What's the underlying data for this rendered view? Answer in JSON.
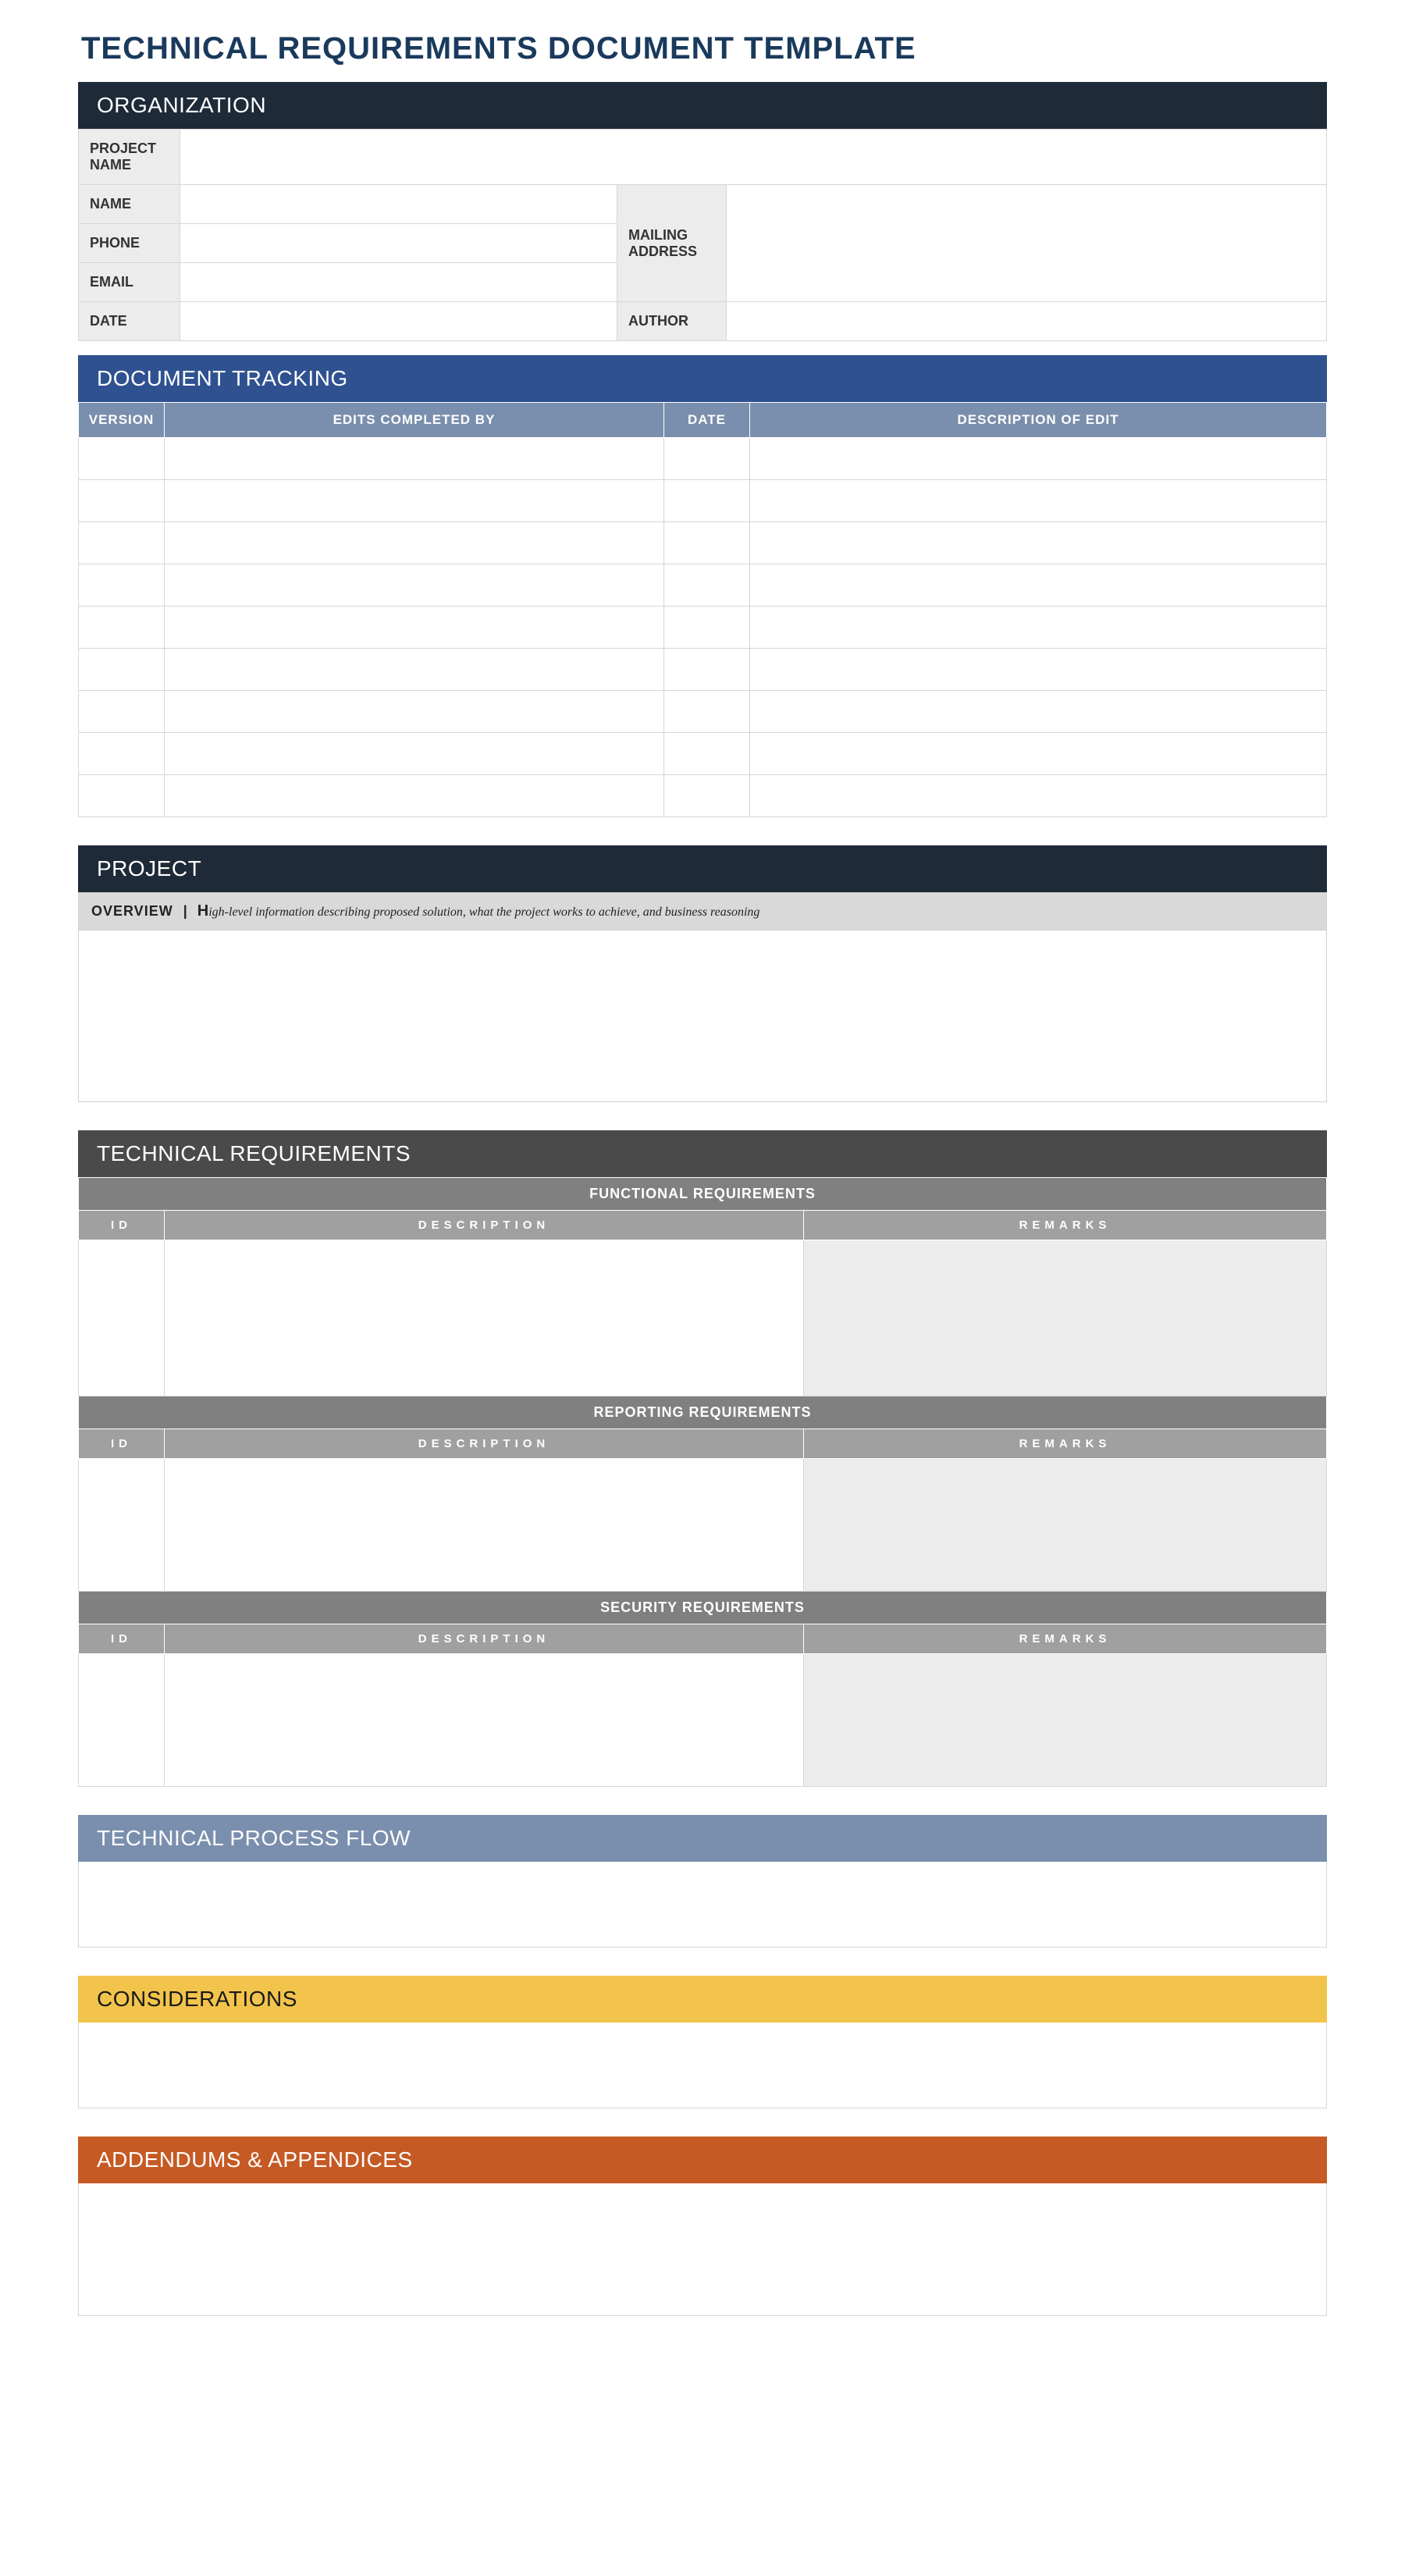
{
  "title": "TECHNICAL REQUIREMENTS DOCUMENT TEMPLATE",
  "colors": {
    "title_text": "#1a3a5c",
    "org_bar": "#1f2a38",
    "track_bar": "#2f5190",
    "track_header": "#7a8fad",
    "proj_bar": "#1f2a38",
    "tech_bar": "#4a4a4a",
    "req_group": "#808080",
    "req_header": "#a0a0a0",
    "flow_bar": "#7a8fad",
    "consid_bar": "#f2c44b",
    "addend_bar": "#c55a24",
    "label_bg": "#ececec",
    "border": "#d6d6d6",
    "overview_bg": "#d9d9d9",
    "remarks_bg": "#ececec"
  },
  "organization": {
    "bar_label": "ORGANIZATION",
    "labels": {
      "project_name": "PROJECT NAME",
      "name": "NAME",
      "phone": "PHONE",
      "email": "EMAIL",
      "date": "DATE",
      "mailing_address": "MAILING ADDRESS",
      "author": "AUTHOR"
    },
    "values": {
      "project_name": "",
      "name": "",
      "phone": "",
      "email": "",
      "date": "",
      "mailing_address": "",
      "author": ""
    }
  },
  "tracking": {
    "bar_label": "DOCUMENT TRACKING",
    "columns": {
      "version": "VERSION",
      "edits_by": "EDITS COMPLETED BY",
      "date": "DATE",
      "descr": "DESCRIPTION OF EDIT"
    },
    "row_count": 9,
    "column_widths": {
      "version": 110,
      "edits_by": 640,
      "date": 110
    }
  },
  "project": {
    "bar_label": "PROJECT",
    "overview_lead": "OVERVIEW",
    "overview_sep": "|",
    "overview_bigletter": "H",
    "overview_desc": "igh-level information describing proposed solution, what the project works to achieve, and business reasoning",
    "overview_body": ""
  },
  "technical": {
    "bar_label": "TECHNICAL REQUIREMENTS",
    "columns": {
      "id": "ID",
      "desc": "DESCRIPTION",
      "remarks": "REMARKS"
    },
    "groups": [
      {
        "title": "FUNCTIONAL REQUIREMENTS",
        "body_height": 200
      },
      {
        "title": "REPORTING REQUIREMENTS",
        "body_height": 170
      },
      {
        "title": "SECURITY REQUIREMENTS",
        "body_height": 170
      }
    ],
    "column_widths": {
      "id": 110,
      "remarks": 670
    }
  },
  "flow": {
    "bar_label": "TECHNICAL PROCESS FLOW",
    "body": ""
  },
  "considerations": {
    "bar_label": "CONSIDERATIONS",
    "body": ""
  },
  "addendums": {
    "bar_label": "ADDENDUMS & APPENDICES",
    "body": ""
  }
}
